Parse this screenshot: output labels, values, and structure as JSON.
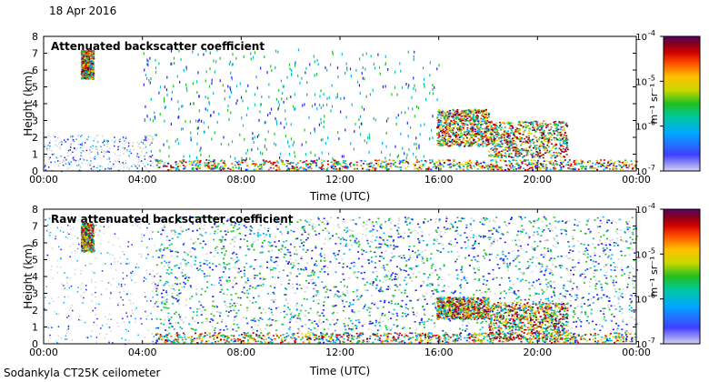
{
  "date_label": "18 Apr 2016",
  "footer_label": "Sodankyla CT25K ceilometer",
  "chart_data": [
    {
      "type": "heatmap",
      "title": "Attenuated backscatter coefficient",
      "xlabel": "Time (UTC)",
      "ylabel": "Height (km)",
      "xlim": [
        0,
        24
      ],
      "ylim": [
        0,
        8
      ],
      "x_ticks": [
        0,
        4,
        8,
        12,
        16,
        20,
        24
      ],
      "x_tick_labels": [
        "00:00",
        "04:00",
        "08:00",
        "12:00",
        "16:00",
        "20:00",
        "00:00"
      ],
      "y_ticks": [
        0,
        1,
        2,
        3,
        4,
        5,
        6,
        7,
        8
      ],
      "y_tick_labels": [
        "0",
        "1",
        "2",
        "3",
        "4",
        "5",
        "6",
        "7",
        "8"
      ],
      "colorbar": {
        "label": "m⁻¹ sr⁻¹",
        "scale": "log",
        "range": [
          1e-07,
          0.0001
        ],
        "ticks": [
          -7,
          -6,
          -5,
          -4
        ],
        "tick_base": "10",
        "tick_exponents": [
          "-7",
          "-6",
          "-5",
          "-4"
        ]
      },
      "features": [
        {
          "name": "boundary-layer",
          "from_h": 4.5,
          "to_h": 24,
          "base_km": 0.1,
          "top_km": 0.7
        },
        {
          "name": "cloud-16-18h",
          "from_h": 15.9,
          "to_h": 18.0,
          "base_km": 1.5,
          "top_km": 3.7
        },
        {
          "name": "cloud-18-21h",
          "from_h": 18.0,
          "to_h": 21.2,
          "base_km": 0.8,
          "top_km": 3.0
        },
        {
          "name": "cloud-1.5-2h",
          "from_h": 1.5,
          "to_h": 2.0,
          "base_km": 5.5,
          "top_km": 7.2
        }
      ]
    },
    {
      "type": "heatmap",
      "title": "Raw attenuated backscatter coefficient",
      "xlabel": "Time (UTC)",
      "ylabel": "Height (km)",
      "xlim": [
        0,
        24
      ],
      "ylim": [
        0,
        8
      ],
      "x_ticks": [
        0,
        4,
        8,
        12,
        16,
        20,
        24
      ],
      "x_tick_labels": [
        "00:00",
        "04:00",
        "08:00",
        "12:00",
        "16:00",
        "20:00",
        "00:00"
      ],
      "y_ticks": [
        0,
        1,
        2,
        3,
        4,
        5,
        6,
        7,
        8
      ],
      "y_tick_labels": [
        "0",
        "1",
        "2",
        "3",
        "4",
        "5",
        "6",
        "7",
        "8"
      ],
      "colorbar": {
        "label": "m⁻¹ sr⁻¹",
        "scale": "log",
        "range": [
          1e-07,
          0.0001
        ],
        "ticks": [
          -7,
          -6,
          -5,
          -4
        ],
        "tick_base": "10",
        "tick_exponents": [
          "-7",
          "-6",
          "-5",
          "-4"
        ]
      },
      "features": [
        {
          "name": "noise-field",
          "from_h": 4.5,
          "to_h": 24,
          "base_km": 0.8,
          "top_km": 7.6
        },
        {
          "name": "boundary-layer",
          "from_h": 4.5,
          "to_h": 24,
          "base_km": 0.1,
          "top_km": 0.7
        },
        {
          "name": "cloud-16-18h",
          "from_h": 15.9,
          "to_h": 18.0,
          "base_km": 1.5,
          "top_km": 2.8
        },
        {
          "name": "cloud-18-21h",
          "from_h": 18.0,
          "to_h": 21.2,
          "base_km": 0.3,
          "top_km": 2.5
        },
        {
          "name": "cloud-1.5-2h",
          "from_h": 1.5,
          "to_h": 2.0,
          "base_km": 5.5,
          "top_km": 7.2
        }
      ]
    }
  ],
  "colormap": [
    "#d2d2d2",
    "#2020ff",
    "#00b4ff",
    "#00c8a0",
    "#20c020",
    "#c8d800",
    "#ffd000",
    "#ff6000",
    "#e00000",
    "#900000",
    "#5a0070"
  ]
}
